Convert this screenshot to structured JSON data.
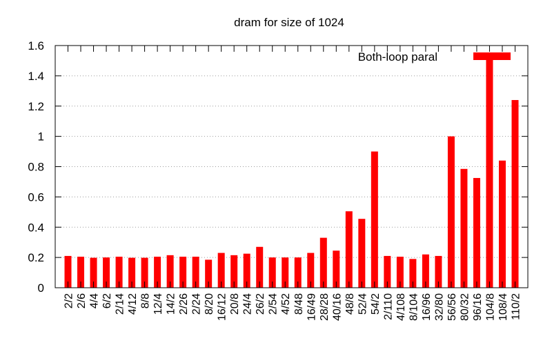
{
  "chart_data": {
    "type": "bar",
    "title": "dram for size of 1024",
    "xlabel": "",
    "ylabel": "",
    "ylim": [
      0,
      1.6
    ],
    "yticks": [
      "0",
      "0.2",
      "0.4",
      "0.6",
      "0.8",
      "1",
      "1.2",
      "1.4",
      "1.6"
    ],
    "grid": "horizontal dotted",
    "legend_position": "top-right",
    "bar_color": "#ff0000",
    "categories": [
      "2/2",
      "2/6",
      "4/4",
      "6/2",
      "2/14",
      "4/12",
      "8/8",
      "12/4",
      "14/2",
      "2/26",
      "2/24",
      "8/20",
      "16/12",
      "20/8",
      "24/4",
      "26/2",
      "2/54",
      "4/52",
      "8/48",
      "16/49",
      "28/28",
      "40/16",
      "48/8",
      "52/4",
      "54/2",
      "2/110",
      "4/108",
      "8/104",
      "16/96",
      "32/80",
      "56/56",
      "80/32",
      "96/16",
      "104/8",
      "108/4",
      "110/2"
    ],
    "series": [
      {
        "name": "Both-loop paral",
        "values": [
          0.21,
          0.205,
          0.198,
          0.2,
          0.205,
          0.198,
          0.198,
          0.205,
          0.215,
          0.205,
          0.205,
          0.185,
          0.23,
          0.215,
          0.225,
          0.27,
          0.2,
          0.2,
          0.2,
          0.23,
          0.33,
          0.245,
          0.505,
          0.455,
          0.9,
          0.21,
          0.205,
          0.19,
          0.22,
          0.21,
          1.0,
          0.785,
          0.725,
          1.55,
          0.84,
          1.24
        ]
      }
    ]
  }
}
